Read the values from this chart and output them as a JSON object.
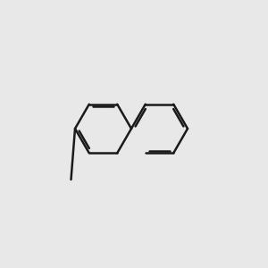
{
  "background_color": "#e8e8e8",
  "bond_color": "#1a1a1a",
  "S_color": "#b8a000",
  "N_color": "#0000cc",
  "O_color": "#cc0000",
  "NH_color": "#008888",
  "figsize": [
    3.0,
    3.0
  ],
  "dpi": 100
}
